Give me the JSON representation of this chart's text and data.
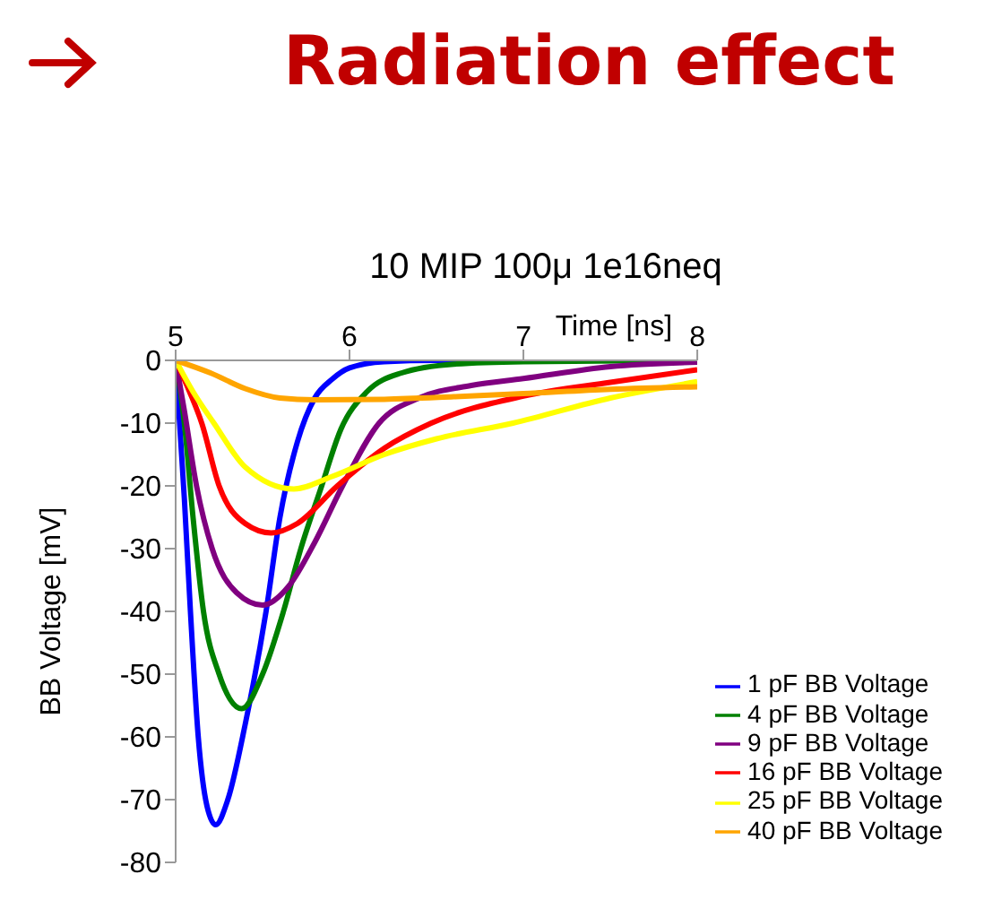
{
  "chart_data": {
    "type": "line",
    "title": "Radiation effect",
    "subtitle": "10 MIP 100μ 1e16neq",
    "xlabel": "Time [ns]",
    "ylabel": "BB Voltage [mV]",
    "xlim": [
      5,
      8
    ],
    "xticks": [
      5,
      6,
      7,
      8
    ],
    "ylim": [
      -80,
      0
    ],
    "yticks": [
      -80,
      -70,
      -60,
      -50,
      -40,
      -30,
      -20,
      -10,
      0
    ],
    "legend": "bottom right",
    "marker": "none",
    "series": [
      {
        "name": "1 pF BB Voltage",
        "color": "#0000ff",
        "x": [
          5,
          5.05,
          5.085,
          5.13,
          5.18,
          5.23,
          5.3,
          5.4,
          5.52,
          5.6,
          5.7,
          5.8,
          5.9,
          6,
          6.2,
          6.5,
          8
        ],
        "values": [
          0,
          -22,
          -40,
          -60,
          -71,
          -74,
          -70,
          -58,
          -40,
          -25,
          -13,
          -6,
          -3,
          -1.2,
          -0.2,
          0,
          0
        ]
      },
      {
        "name": "4 pF BB Voltage",
        "color": "#008000",
        "x": [
          5,
          5.05,
          5.1,
          5.16,
          5.25,
          5.38,
          5.5,
          5.62,
          5.72,
          5.84,
          5.95,
          6.1,
          6.3,
          6.6,
          7,
          8
        ],
        "values": [
          0,
          -10,
          -25,
          -40,
          -50,
          -55.5,
          -50,
          -40,
          -30,
          -20,
          -11,
          -5,
          -2,
          -0.6,
          -0.2,
          0
        ]
      },
      {
        "name": "9 pF BB Voltage",
        "color": "#800080",
        "x": [
          5,
          5.05,
          5.12,
          5.21,
          5.35,
          5.5,
          5.65,
          5.8,
          5.96,
          6.17,
          6.4,
          6.7,
          7,
          7.5,
          8
        ],
        "values": [
          0,
          -8,
          -20,
          -30,
          -37,
          -39,
          -36,
          -29,
          -20,
          -10,
          -6,
          -4,
          -2.9,
          -1,
          -0.3
        ]
      },
      {
        "name": "16 pF BB Voltage",
        "color": "#ff0000",
        "x": [
          5,
          5.08,
          5.15,
          5.25,
          5.4,
          5.55,
          5.7,
          5.93,
          6.2,
          6.47,
          7,
          7.5,
          8
        ],
        "values": [
          0,
          -5,
          -10,
          -20,
          -26,
          -27.5,
          -26,
          -20,
          -14,
          -10,
          -5.7,
          -3.5,
          -1.5
        ]
      },
      {
        "name": "25 pF BB Voltage",
        "color": "#ffff00",
        "x": [
          5,
          5.1,
          5.22,
          5.4,
          5.68,
          5.9,
          6.2,
          6.5,
          6.94,
          7.5,
          8
        ],
        "values": [
          0,
          -5,
          -10,
          -17,
          -20.5,
          -18.5,
          -15,
          -12.5,
          -10,
          -6,
          -3.4
        ]
      },
      {
        "name": "40 pF BB Voltage",
        "color": "#ffa500",
        "x": [
          5,
          5.2,
          5.4,
          5.6,
          5.8,
          6.2,
          6.6,
          7,
          7.5,
          8
        ],
        "values": [
          0,
          -2,
          -4.5,
          -6,
          -6.3,
          -6.2,
          -5.8,
          -5.3,
          -4.6,
          -4.2
        ]
      }
    ]
  }
}
